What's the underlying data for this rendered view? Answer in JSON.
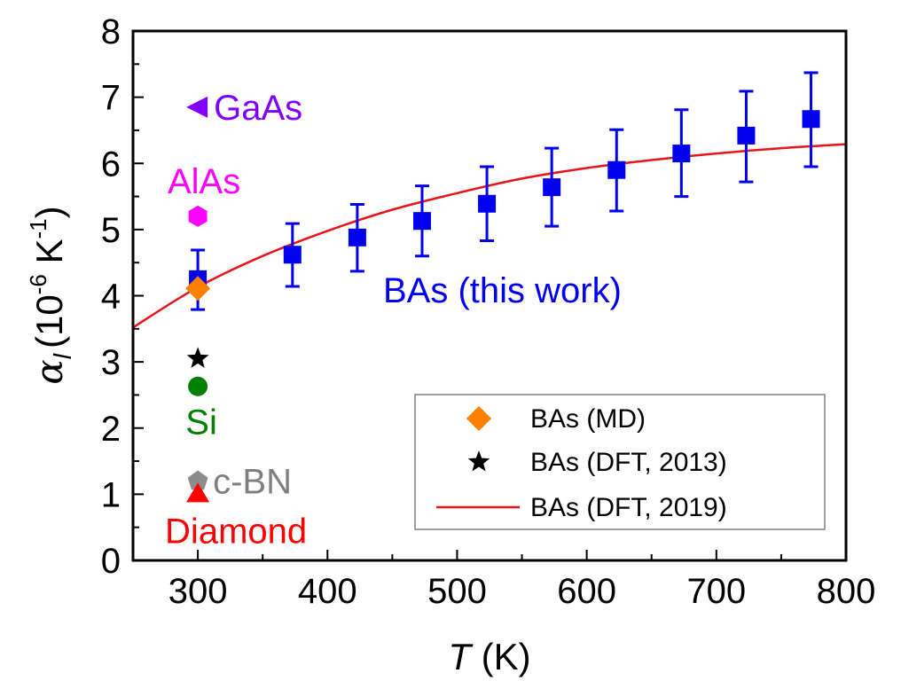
{
  "chart_data": {
    "type": "scatter",
    "title": "",
    "xlabel": "T (K)",
    "xlabel_italic": "T",
    "xlabel_unit": " (K)",
    "ylabel": "α_l (10^-6 K^-1)",
    "ylabel_parts": {
      "symbol": "α",
      "subscript": "l",
      "open": "(10",
      "exp1": "-6",
      "unit": " K",
      "exp2": "-1",
      "close": ")"
    },
    "xlim": [
      250,
      800
    ],
    "ylim": [
      0,
      8
    ],
    "xticks": [
      300,
      400,
      500,
      600,
      700,
      800
    ],
    "yticks": [
      0,
      1,
      2,
      3,
      4,
      5,
      6,
      7,
      8
    ],
    "grid": false,
    "series": [
      {
        "name": "BAs (this work)",
        "marker": "square",
        "color": "#0000ee",
        "x": [
          300,
          373,
          423,
          473,
          523,
          573,
          623,
          673,
          723,
          773
        ],
        "y": [
          4.25,
          4.62,
          4.88,
          5.13,
          5.39,
          5.64,
          5.9,
          6.15,
          6.42,
          6.67
        ],
        "err_low": [
          3.79,
          4.14,
          4.37,
          4.6,
          4.83,
          5.05,
          5.28,
          5.5,
          5.72,
          5.95
        ],
        "err_high": [
          4.69,
          5.09,
          5.38,
          5.66,
          5.95,
          6.23,
          6.51,
          6.81,
          7.09,
          7.37
        ]
      },
      {
        "name": "BAs (MD)",
        "marker": "diamond",
        "color": "#ff7f00",
        "x": [
          300
        ],
        "y": [
          4.11
        ]
      },
      {
        "name": "BAs (DFT, 2013)",
        "marker": "star",
        "color": "#000000",
        "x": [
          300
        ],
        "y": [
          3.05
        ]
      },
      {
        "name": "BAs (DFT, 2019)",
        "type": "line",
        "color": "#e8141a",
        "x": [
          250,
          300,
          350,
          400,
          450,
          500,
          550,
          600,
          650,
          700,
          750,
          800
        ],
        "y": [
          3.52,
          4.13,
          4.6,
          4.98,
          5.3,
          5.55,
          5.77,
          5.93,
          6.05,
          6.15,
          6.23,
          6.29
        ]
      }
    ],
    "reference_points": [
      {
        "label": "GaAs",
        "marker": "triangle-left",
        "color": "#8000ff",
        "x": 300,
        "y": 6.85
      },
      {
        "label": "AlAs",
        "marker": "hexagon",
        "color": "#ff00ff",
        "x": 300,
        "y": 5.2
      },
      {
        "label": "Si",
        "marker": "circle",
        "color": "#008000",
        "x": 300,
        "y": 2.63
      },
      {
        "label": "c-BN",
        "marker": "pentagon",
        "color": "#808080",
        "x": 300,
        "y": 1.2
      },
      {
        "label": "Diamond",
        "marker": "triangle-up",
        "color": "#ff0000",
        "x": 300,
        "y": 1.0
      }
    ],
    "annotations": [
      {
        "text": "BAs (this work)",
        "color": "#0000ee"
      }
    ],
    "legend": {
      "placement": "bottom-right",
      "entries": [
        "BAs (MD)",
        "BAs (DFT, 2013)",
        "BAs (DFT, 2019)"
      ]
    }
  }
}
